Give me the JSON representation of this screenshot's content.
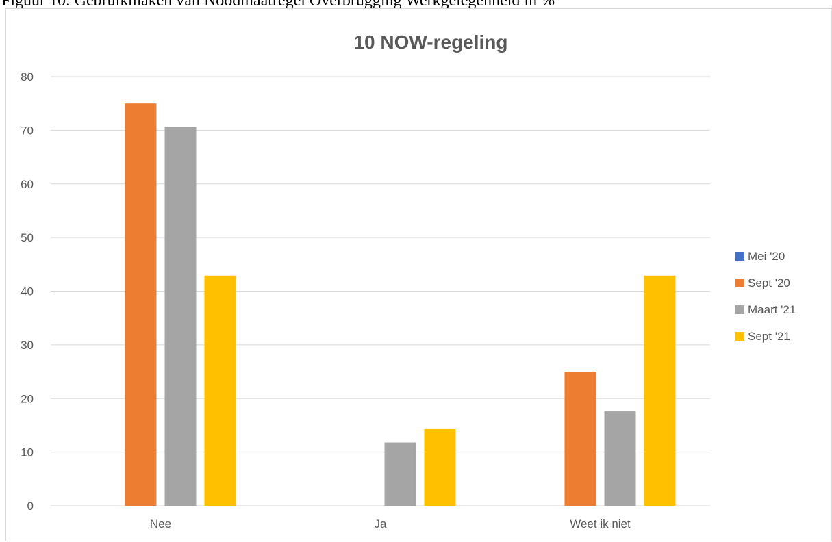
{
  "document": {
    "caption": "Figuur 10: Gebruikmaken van Noodmaatregel Overbrugging Werkgelegenheid in %"
  },
  "chart_data": {
    "type": "bar",
    "title": "10 NOW-regeling",
    "xlabel": "",
    "ylabel": "",
    "ylim": [
      0,
      80
    ],
    "yticks": [
      0,
      10,
      20,
      30,
      40,
      50,
      60,
      70,
      80
    ],
    "grid": true,
    "legend_position": "right",
    "categories": [
      "Nee",
      "Ja",
      "Weet ik niet"
    ],
    "series": [
      {
        "name": "Mei '20",
        "color": "#4472C4",
        "values": [
          0,
          0,
          0
        ]
      },
      {
        "name": "Sept '20",
        "color": "#ED7D31",
        "values": [
          75,
          0,
          25
        ]
      },
      {
        "name": "Maart '21",
        "color": "#A5A5A5",
        "values": [
          70.6,
          11.8,
          17.6
        ]
      },
      {
        "name": "Sept '21",
        "color": "#FFC000",
        "values": [
          42.9,
          14.3,
          42.9
        ]
      }
    ]
  }
}
